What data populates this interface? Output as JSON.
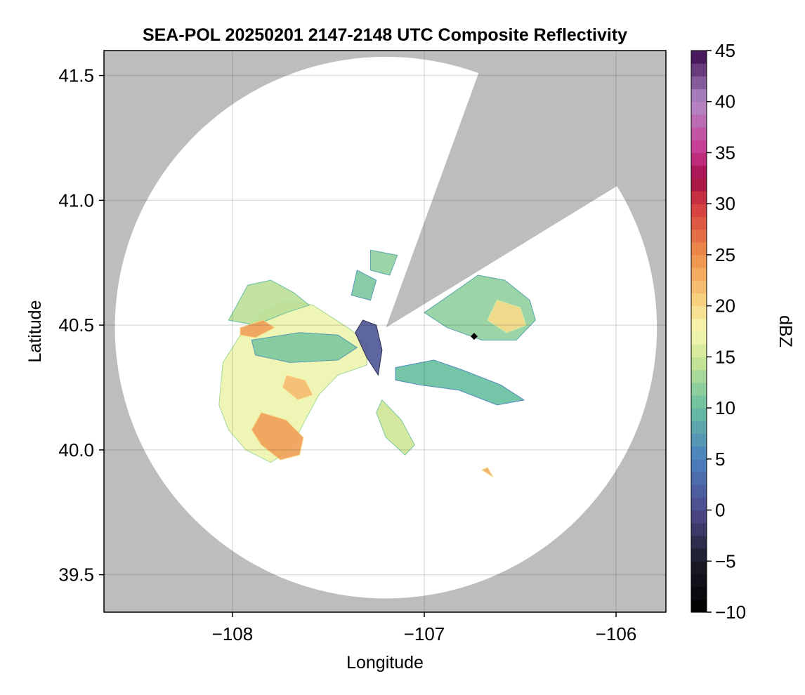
{
  "chart_data": {
    "type": "heatmap",
    "title": "SEA-POL 20250201 2147-2148 UTC Composite Reflectivity",
    "xlabel": "Longitude",
    "ylabel": "Latitude",
    "xlim": [
      -108.67,
      -105.74
    ],
    "ylim": [
      39.35,
      41.6
    ],
    "xticks": [
      -108,
      -107,
      -106
    ],
    "xtick_labels": [
      "−108",
      "−107",
      "−106"
    ],
    "yticks": [
      39.5,
      40.0,
      40.5,
      41.0,
      41.5
    ],
    "ytick_labels": [
      "39.5",
      "40.0",
      "40.5",
      "41.0",
      "41.5"
    ],
    "grid": true,
    "background_color": "#bdbdbd",
    "radar": {
      "center": [
        -107.2,
        40.49
      ],
      "max_range_lat_deg": 1.085,
      "blocked_sector_deg": [
        20.0,
        58.5
      ],
      "station_marker": [
        -106.74,
        40.455
      ]
    },
    "colorbar": {
      "label": "dBZ",
      "min": -10,
      "max": 45,
      "ticks": [
        -10,
        -5,
        0,
        5,
        10,
        15,
        20,
        25,
        30,
        35,
        40,
        45
      ],
      "tick_labels": [
        "−10",
        "−5",
        "0",
        "5",
        "10",
        "15",
        "20",
        "25",
        "30",
        "35",
        "40",
        "45"
      ],
      "colormap_stops": [
        {
          "value": -10,
          "color": "#000000"
        },
        {
          "value": -5,
          "color": "#1b1b28"
        },
        {
          "value": 0,
          "color": "#4e4b8c"
        },
        {
          "value": 5,
          "color": "#4a7fc0"
        },
        {
          "value": 10,
          "color": "#66bfa0"
        },
        {
          "value": 15,
          "color": "#cfe795"
        },
        {
          "value": 17.5,
          "color": "#f5f7b2"
        },
        {
          "value": 20,
          "color": "#f8d988"
        },
        {
          "value": 25,
          "color": "#ee8f4a"
        },
        {
          "value": 30,
          "color": "#d2383f"
        },
        {
          "value": 32.5,
          "color": "#a10f48"
        },
        {
          "value": 35,
          "color": "#c8358c"
        },
        {
          "value": 40,
          "color": "#b38cc9"
        },
        {
          "value": 45,
          "color": "#3a0a4e"
        }
      ]
    },
    "echo_regions": [
      {
        "dbz": 17,
        "points": [
          [
            -108.05,
            40.35
          ],
          [
            -107.95,
            40.47
          ],
          [
            -107.85,
            40.55
          ],
          [
            -107.72,
            40.6
          ],
          [
            -107.58,
            40.58
          ],
          [
            -107.48,
            40.53
          ],
          [
            -107.38,
            40.48
          ],
          [
            -107.3,
            40.42
          ],
          [
            -107.3,
            40.34
          ],
          [
            -107.45,
            40.3
          ],
          [
            -107.55,
            40.22
          ],
          [
            -107.62,
            40.12
          ],
          [
            -107.7,
            40.0
          ],
          [
            -107.8,
            39.95
          ],
          [
            -107.93,
            40.0
          ],
          [
            -108.02,
            40.08
          ],
          [
            -108.07,
            40.18
          ]
        ]
      },
      {
        "dbz": 14,
        "points": [
          [
            -108.02,
            40.52
          ],
          [
            -107.92,
            40.66
          ],
          [
            -107.8,
            40.68
          ],
          [
            -107.68,
            40.63
          ],
          [
            -107.6,
            40.58
          ],
          [
            -107.72,
            40.55
          ],
          [
            -107.88,
            40.5
          ]
        ]
      },
      {
        "dbz": 24,
        "points": [
          [
            -107.85,
            40.15
          ],
          [
            -107.72,
            40.12
          ],
          [
            -107.63,
            40.05
          ],
          [
            -107.65,
            39.98
          ],
          [
            -107.75,
            39.96
          ],
          [
            -107.85,
            40.02
          ],
          [
            -107.9,
            40.08
          ]
        ]
      },
      {
        "dbz": 24,
        "points": [
          [
            -107.96,
            40.49
          ],
          [
            -107.84,
            40.52
          ],
          [
            -107.78,
            40.49
          ],
          [
            -107.88,
            40.45
          ],
          [
            -107.96,
            40.46
          ]
        ]
      },
      {
        "dbz": 22,
        "points": [
          [
            -107.72,
            40.3
          ],
          [
            -107.62,
            40.28
          ],
          [
            -107.58,
            40.22
          ],
          [
            -107.66,
            40.2
          ],
          [
            -107.74,
            40.25
          ]
        ]
      },
      {
        "dbz": 11,
        "points": [
          [
            -107.9,
            40.44
          ],
          [
            -107.65,
            40.47
          ],
          [
            -107.45,
            40.46
          ],
          [
            -107.35,
            40.41
          ],
          [
            -107.45,
            40.36
          ],
          [
            -107.7,
            40.35
          ],
          [
            -107.88,
            40.38
          ]
        ]
      },
      {
        "dbz": 1,
        "points": [
          [
            -107.32,
            40.52
          ],
          [
            -107.25,
            40.5
          ],
          [
            -107.22,
            40.4
          ],
          [
            -107.24,
            40.3
          ],
          [
            -107.3,
            40.37
          ],
          [
            -107.36,
            40.47
          ]
        ]
      },
      {
        "dbz": 12,
        "points": [
          [
            -106.72,
            40.7
          ],
          [
            -106.58,
            40.68
          ],
          [
            -106.45,
            40.6
          ],
          [
            -106.42,
            40.52
          ],
          [
            -106.52,
            40.44
          ],
          [
            -106.7,
            40.44
          ],
          [
            -106.88,
            40.49
          ],
          [
            -107.0,
            40.55
          ],
          [
            -106.85,
            40.63
          ]
        ]
      },
      {
        "dbz": 20,
        "points": [
          [
            -106.62,
            40.6
          ],
          [
            -106.5,
            40.57
          ],
          [
            -106.47,
            40.5
          ],
          [
            -106.57,
            40.47
          ],
          [
            -106.67,
            40.52
          ]
        ]
      },
      {
        "dbz": 10,
        "points": [
          [
            -107.15,
            40.33
          ],
          [
            -106.95,
            40.36
          ],
          [
            -106.8,
            40.32
          ],
          [
            -106.6,
            40.26
          ],
          [
            -106.48,
            40.2
          ],
          [
            -106.62,
            40.18
          ],
          [
            -106.82,
            40.24
          ],
          [
            -107.02,
            40.26
          ],
          [
            -107.15,
            40.28
          ]
        ]
      },
      {
        "dbz": 15,
        "points": [
          [
            -107.22,
            40.2
          ],
          [
            -107.12,
            40.12
          ],
          [
            -107.05,
            40.02
          ],
          [
            -107.1,
            39.98
          ],
          [
            -107.2,
            40.05
          ],
          [
            -107.25,
            40.15
          ]
        ]
      },
      {
        "dbz": 11,
        "points": [
          [
            -107.35,
            40.72
          ],
          [
            -107.25,
            40.68
          ],
          [
            -107.28,
            40.6
          ],
          [
            -107.38,
            40.62
          ]
        ]
      },
      {
        "dbz": 12,
        "points": [
          [
            -107.28,
            40.8
          ],
          [
            -107.14,
            40.78
          ],
          [
            -107.18,
            40.7
          ],
          [
            -107.28,
            40.72
          ]
        ]
      },
      {
        "dbz": 23,
        "points": [
          [
            -106.7,
            39.92
          ],
          [
            -106.64,
            39.89
          ],
          [
            -106.67,
            39.93
          ]
        ]
      }
    ]
  }
}
